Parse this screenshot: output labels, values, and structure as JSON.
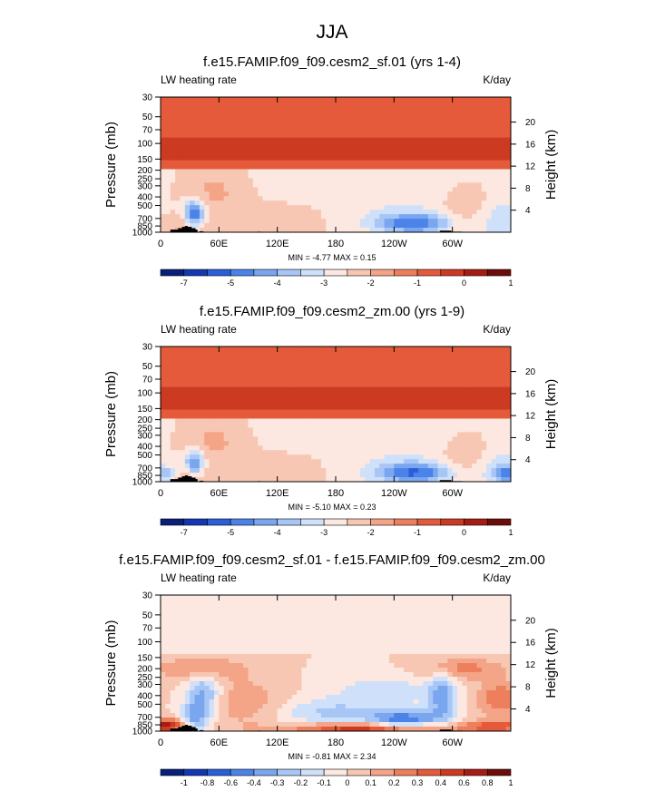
{
  "figure_title": "JJA",
  "colors": {
    "palette": [
      "#08207a",
      "#1238b4",
      "#2a5fd8",
      "#4c83e8",
      "#7aa6f0",
      "#a7c6f6",
      "#cfe1fa",
      "#fce8e0",
      "#f8c7b4",
      "#f4a487",
      "#ee7f5c",
      "#e45a3a",
      "#cc3a22",
      "#a51c14",
      "#6e0b0b"
    ]
  },
  "chart_data": [
    {
      "type": "heatmap",
      "title": "f.e15.FAMIP.f09_f09.cesm2_sf.01 (yrs 1-4)",
      "left_label": "LW heating rate",
      "right_label": "K/day",
      "ylabel": "Pressure (mb)",
      "y2label": "Height (km)",
      "xticks": [
        "0",
        "60E",
        "120E",
        "180",
        "120W",
        "60W"
      ],
      "yticks": [
        "30",
        "50",
        "70",
        "100",
        "150",
        "200",
        "250",
        "300",
        "400",
        "500",
        "700",
        "850",
        "1000"
      ],
      "y2ticks": [
        "20",
        "16",
        "12",
        "8",
        "4"
      ],
      "stats": "MIN =  -4.77  MAX =   0.15",
      "colorbar_ticks": [
        "-7",
        "-5",
        "-4",
        "-3",
        "-2",
        "-1",
        "0",
        "1"
      ]
    },
    {
      "type": "heatmap",
      "title": "f.e15.FAMIP.f09_f09.cesm2_zm.00 (yrs 1-9)",
      "left_label": "LW heating rate",
      "right_label": "K/day",
      "ylabel": "Pressure (mb)",
      "y2label": "Height (km)",
      "xticks": [
        "0",
        "60E",
        "120E",
        "180",
        "120W",
        "60W"
      ],
      "yticks": [
        "30",
        "50",
        "70",
        "100",
        "150",
        "200",
        "250",
        "300",
        "400",
        "500",
        "700",
        "850",
        "1000"
      ],
      "y2ticks": [
        "20",
        "16",
        "12",
        "8",
        "4"
      ],
      "stats": "MIN =  -5.10  MAX =   0.23",
      "colorbar_ticks": [
        "-7",
        "-5",
        "-4",
        "-3",
        "-2",
        "-1",
        "0",
        "1"
      ]
    },
    {
      "type": "heatmap",
      "title": "f.e15.FAMIP.f09_f09.cesm2_sf.01 - f.e15.FAMIP.f09_f09.cesm2_zm.00",
      "left_label": "LW heating rate",
      "right_label": "K/day",
      "ylabel": "Pressure (mb)",
      "y2label": "Height (km)",
      "xticks": [
        "0",
        "60E",
        "120E",
        "180",
        "120W",
        "60W"
      ],
      "yticks": [
        "30",
        "50",
        "70",
        "100",
        "150",
        "200",
        "250",
        "300",
        "400",
        "500",
        "700",
        "850",
        "1000"
      ],
      "y2ticks": [
        "20",
        "16",
        "12",
        "8",
        "4"
      ],
      "stats": "MIN =  -0.81  MAX =   2.34",
      "colorbar_ticks": [
        "-1",
        "-0.8",
        "-0.6",
        "-0.4",
        "-0.3",
        "-0.2",
        "-0.1",
        "0",
        "0.1",
        "0.2",
        "0.3",
        "0.4",
        "0.6",
        "0.8",
        "1"
      ]
    }
  ]
}
